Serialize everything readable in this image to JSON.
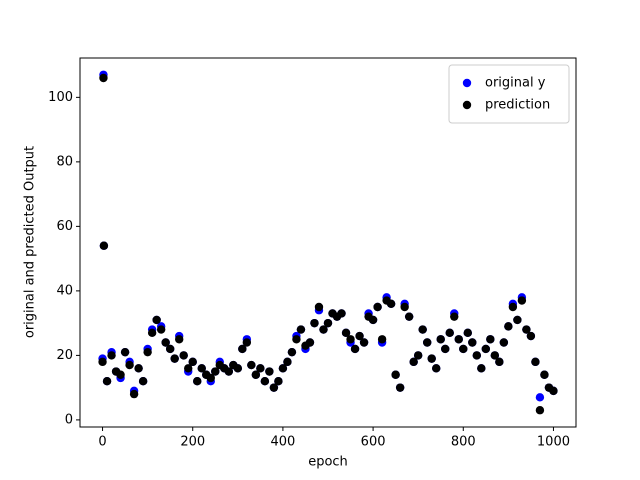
{
  "chart_data": {
    "type": "scatter",
    "xlabel": "epoch",
    "ylabel": "original and predicted Output",
    "legend": "upper right",
    "xlim": [
      -50,
      1050
    ],
    "ylim": [
      -2.2,
      112.2
    ],
    "xticks": [
      0,
      200,
      400,
      600,
      800,
      1000
    ],
    "yticks": [
      0,
      20,
      40,
      60,
      80,
      100
    ],
    "x": [
      0,
      2,
      3,
      10,
      20,
      30,
      40,
      50,
      60,
      70,
      80,
      90,
      100,
      110,
      120,
      130,
      140,
      150,
      160,
      170,
      180,
      190,
      200,
      210,
      220,
      230,
      240,
      250,
      260,
      270,
      280,
      290,
      300,
      310,
      320,
      330,
      340,
      350,
      360,
      370,
      380,
      390,
      400,
      410,
      420,
      430,
      440,
      450,
      460,
      470,
      480,
      490,
      500,
      510,
      520,
      530,
      540,
      550,
      560,
      570,
      580,
      590,
      600,
      610,
      620,
      630,
      640,
      650,
      660,
      670,
      680,
      690,
      700,
      710,
      720,
      730,
      740,
      750,
      760,
      770,
      780,
      790,
      800,
      810,
      820,
      830,
      840,
      850,
      860,
      870,
      880,
      890,
      900,
      910,
      920,
      930,
      940,
      950,
      960,
      970,
      980,
      990,
      1000
    ],
    "series": [
      {
        "name": "original y",
        "color": "#0000ff",
        "values": [
          19,
          107,
          54,
          12,
          21,
          15,
          13,
          21,
          18,
          9,
          16,
          12,
          22,
          28,
          31,
          29,
          24,
          22,
          19,
          26,
          20,
          15,
          18,
          12,
          16,
          14,
          12,
          15,
          18,
          16,
          15,
          17,
          16,
          22,
          25,
          17,
          14,
          16,
          12,
          15,
          10,
          12,
          16,
          18,
          21,
          26,
          28,
          22,
          24,
          30,
          34,
          28,
          30,
          33,
          32,
          33,
          27,
          24,
          22,
          26,
          24,
          33,
          31,
          35,
          24,
          38,
          36,
          14,
          10,
          36,
          32,
          18,
          20,
          28,
          24,
          19,
          16,
          25,
          22,
          27,
          33,
          25,
          22,
          27,
          24,
          20,
          16,
          22,
          25,
          20,
          18,
          24,
          29,
          36,
          31,
          38,
          28,
          26,
          18,
          7,
          14,
          10,
          9
        ]
      },
      {
        "name": "prediction",
        "color": "#000000",
        "values": [
          18,
          106,
          54,
          12,
          20,
          15,
          14,
          21,
          17,
          8,
          16,
          12,
          21,
          27,
          31,
          28,
          24,
          22,
          19,
          25,
          20,
          16,
          18,
          12,
          16,
          14,
          13,
          15,
          17,
          16,
          15,
          17,
          16,
          22,
          24,
          17,
          14,
          16,
          12,
          15,
          10,
          12,
          16,
          18,
          21,
          25,
          28,
          23,
          24,
          30,
          35,
          28,
          30,
          33,
          32,
          33,
          27,
          25,
          22,
          26,
          24,
          32,
          31,
          35,
          25,
          37,
          36,
          14,
          10,
          35,
          32,
          18,
          20,
          28,
          24,
          19,
          16,
          25,
          22,
          27,
          32,
          25,
          22,
          27,
          24,
          20,
          16,
          22,
          25,
          20,
          18,
          24,
          29,
          35,
          31,
          37,
          28,
          26,
          18,
          3,
          14,
          10,
          9
        ]
      }
    ]
  }
}
